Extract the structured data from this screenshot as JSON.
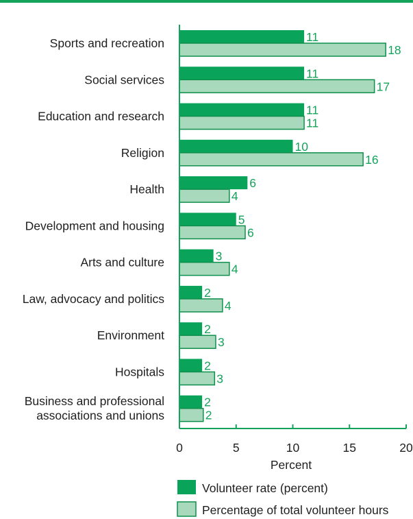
{
  "colors": {
    "top_rule": "#14a35a",
    "axis": "#14a35a",
    "series_1": "#0aa35a",
    "series_2": "#a8d9bd",
    "bar_outline": "#0f8f4c",
    "value_label": "#14a35a"
  },
  "chart_data": {
    "type": "bar",
    "orientation": "horizontal",
    "categories": [
      [
        "Sports and recreation"
      ],
      [
        "Social services"
      ],
      [
        "Education and research"
      ],
      [
        "Religion"
      ],
      [
        "Health"
      ],
      [
        "Development and housing"
      ],
      [
        "Arts and culture"
      ],
      [
        "Law, advocacy and politics"
      ],
      [
        "Environment"
      ],
      [
        "Hospitals"
      ],
      [
        "Business and professional",
        "associations and unions"
      ]
    ],
    "series": [
      {
        "name": "Volunteer rate (percent)",
        "values": [
          11,
          11,
          11,
          10,
          6,
          5,
          3,
          2,
          2,
          2,
          2
        ]
      },
      {
        "name": "Percentage of total volunteer hours",
        "values": [
          18,
          17,
          11,
          16,
          4,
          6,
          4,
          4,
          3,
          3,
          2
        ]
      }
    ],
    "bar_lengths": [
      [
        11,
        18.2
      ],
      [
        11,
        17.2
      ],
      [
        11,
        11
      ],
      [
        10,
        16.2
      ],
      [
        6,
        4.4
      ],
      [
        5,
        5.8
      ],
      [
        3,
        4.4
      ],
      [
        2,
        3.8
      ],
      [
        2,
        3.2
      ],
      [
        2,
        3.1
      ],
      [
        2,
        2.1
      ]
    ],
    "xlabel": "Percent",
    "xlim": [
      0,
      20
    ],
    "xticks": [
      0,
      5,
      10,
      15,
      20
    ],
    "grid": false,
    "legend_position": "bottom"
  }
}
